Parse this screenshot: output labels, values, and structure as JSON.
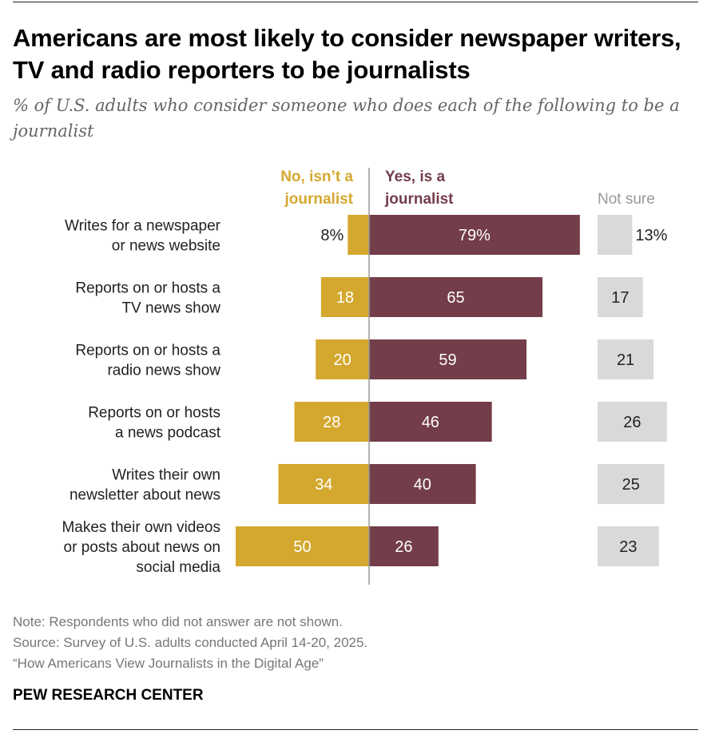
{
  "title": "Americans are most likely to consider newspaper writers, TV and radio reporters to be journalists",
  "subtitle": "% of U.S. adults who consider someone who does each of the following to be a journalist",
  "chart_data": {
    "type": "bar",
    "orientation": "horizontal diverging",
    "categories": [
      [
        "Writes for a newspaper",
        "or news website"
      ],
      [
        "Reports on or hosts a",
        "TV news show"
      ],
      [
        "Reports on or hosts a",
        "radio news show"
      ],
      [
        "Reports on or hosts",
        "a news podcast"
      ],
      [
        "Writes their own",
        "newsletter about news"
      ],
      [
        "Makes their own videos",
        "or posts about news on",
        "social media"
      ]
    ],
    "series": [
      {
        "name": "No, isn’t a journalist",
        "legend_lines": [
          "No, isn’t a",
          "journalist"
        ],
        "color": "#D4A82E",
        "values": [
          8,
          18,
          20,
          28,
          34,
          50
        ]
      },
      {
        "name": "Yes, is a journalist",
        "legend_lines": [
          "Yes, is a",
          "journalist"
        ],
        "color": "#733D49",
        "values": [
          79,
          65,
          59,
          46,
          40,
          26
        ]
      },
      {
        "name": "Not sure",
        "legend_lines": [
          "Not sure"
        ],
        "color": "#D9D9D9",
        "values": [
          13,
          17,
          21,
          26,
          25,
          23
        ]
      }
    ],
    "first_row_suffix": "%",
    "unit": "%"
  },
  "footer": {
    "note": "Note: Respondents who did not answer are not shown.",
    "source": "Source: Survey of U.S. adults conducted April 14-20, 2025.",
    "report": "“How Americans View Journalists in the Digital Age”",
    "brand": "PEW RESEARCH CENTER"
  }
}
